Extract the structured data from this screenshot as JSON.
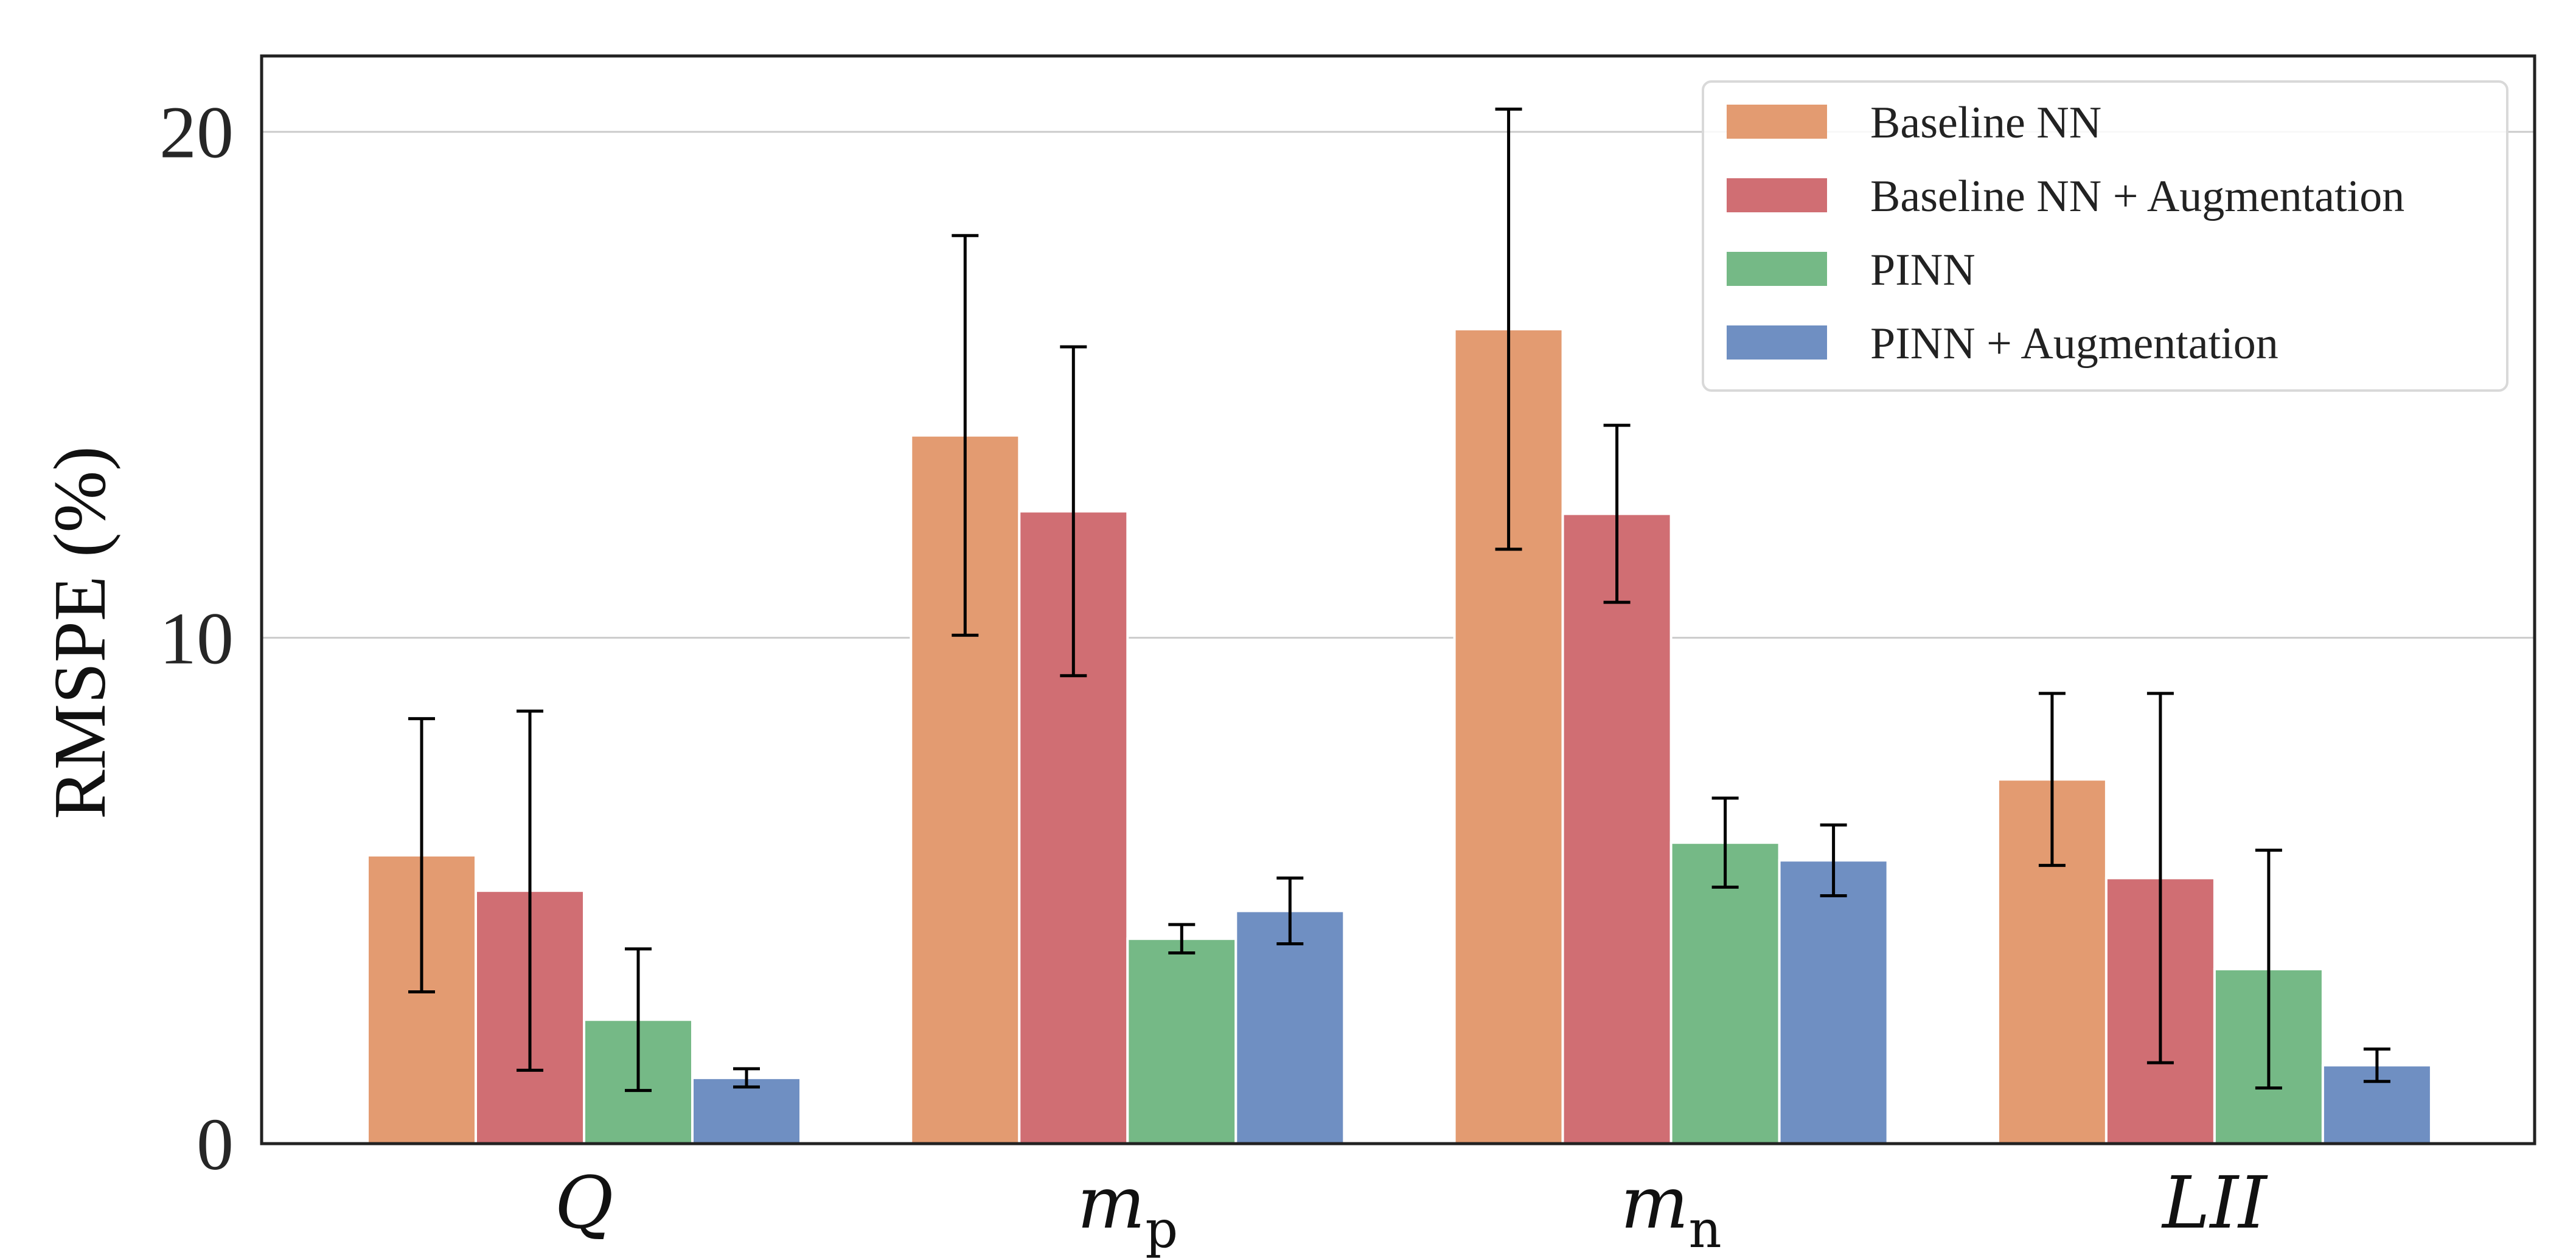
{
  "chart_data": {
    "type": "bar",
    "title": "",
    "xlabel": "",
    "ylabel": "RMSPE (%)",
    "ylim": [
      0,
      21.5
    ],
    "yticks": [
      0,
      10,
      20
    ],
    "grid": "horizontal",
    "legend_position": "top-right",
    "categories": [
      {
        "base": "Q",
        "sub": ""
      },
      {
        "base": "m",
        "sub": "p"
      },
      {
        "base": "m",
        "sub": "n"
      },
      {
        "base": "LII",
        "sub": ""
      }
    ],
    "series": [
      {
        "name": "Baseline NN",
        "color": "#E39B71",
        "values": [
          5.7,
          14.0,
          16.1,
          7.2
        ],
        "errors": [
          2.7,
          3.95,
          4.35,
          1.7
        ]
      },
      {
        "name": "Baseline NN + Augmentation",
        "color": "#D06E73",
        "values": [
          5.0,
          12.5,
          12.45,
          5.25
        ],
        "errors": [
          3.55,
          3.25,
          1.75,
          3.65
        ]
      },
      {
        "name": "PINN",
        "color": "#75B986",
        "values": [
          2.45,
          4.05,
          5.95,
          3.45
        ],
        "errors": [
          1.4,
          0.28,
          0.88,
          2.35
        ]
      },
      {
        "name": "PINN + Augmentation",
        "color": "#6F8FC2",
        "values": [
          1.3,
          4.6,
          5.6,
          1.55
        ],
        "errors": [
          0.18,
          0.65,
          0.7,
          0.32
        ]
      }
    ]
  }
}
